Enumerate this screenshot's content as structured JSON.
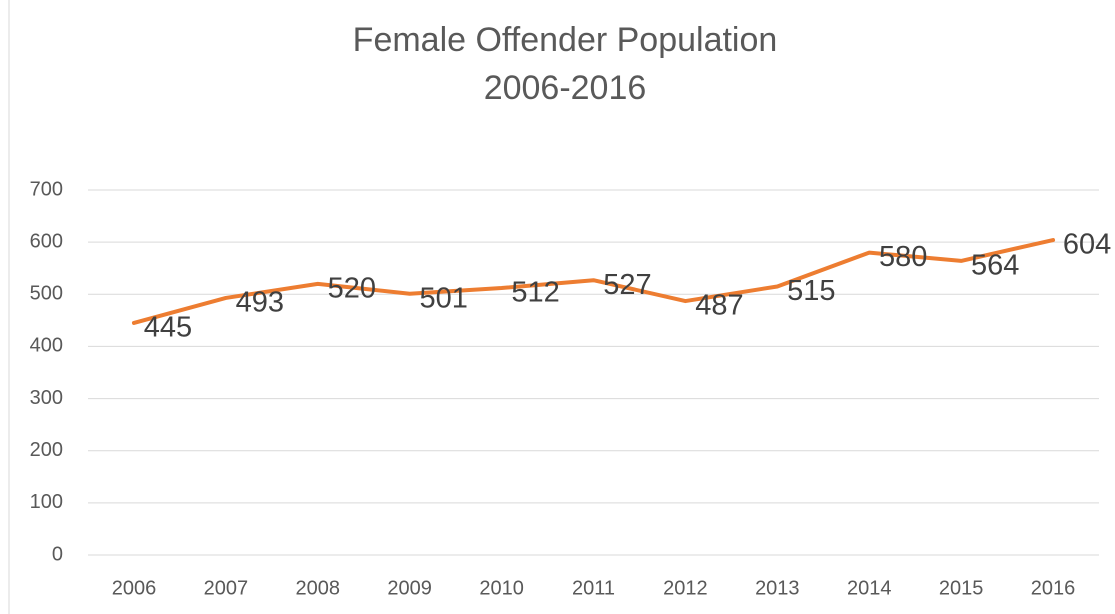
{
  "chart_data": {
    "type": "line",
    "title": "Female Offender Population",
    "subtitle": "2006-2016",
    "categories": [
      "2006",
      "2007",
      "2008",
      "2009",
      "2010",
      "2011",
      "2012",
      "2013",
      "2014",
      "2015",
      "2016"
    ],
    "series": [
      {
        "name": "Female Offender Population",
        "color": "#ed7d31",
        "values": [
          445,
          493,
          520,
          501,
          512,
          527,
          487,
          515,
          580,
          564,
          604
        ]
      }
    ],
    "ylim": [
      0,
      700
    ],
    "yticks": [
      0,
      100,
      200,
      300,
      400,
      500,
      600,
      700
    ],
    "grid": true,
    "legend": false
  }
}
